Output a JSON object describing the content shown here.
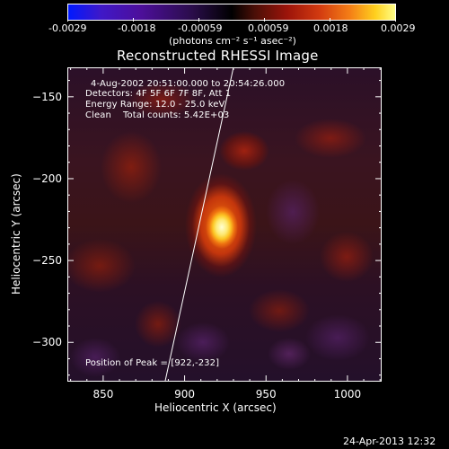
{
  "colorbar": {
    "tick_labels": [
      "-0.0029",
      "-0.0018",
      "-0.00059",
      "0.00059",
      "0.0018",
      "0.0029"
    ],
    "unit_label": "(photons cm⁻² s⁻¹ asec⁻²)",
    "range": [
      -0.0029,
      0.0029
    ]
  },
  "chart_data": {
    "type": "heatmap",
    "title": "Reconstructed RHESSI Image",
    "xlabel": "Heliocentric X (arcsec)",
    "ylabel": "Heliocentric Y (arcsec)",
    "xlim": [
      828,
      1021
    ],
    "ylim": [
      -324,
      -132
    ],
    "x_ticks": [
      850,
      900,
      950,
      1000
    ],
    "y_ticks": [
      -150,
      -200,
      -250,
      -300
    ],
    "x_tick_labels": [
      "850",
      "900",
      "950",
      "1000"
    ],
    "y_tick_labels": [
      "−150",
      "−200",
      "−250",
      "−300"
    ],
    "peak": [
      922,
      -232
    ],
    "limb_line": {
      "x": [
        888,
        930
      ],
      "y": [
        -324,
        -132
      ]
    },
    "annotations": [
      "4-Aug-2002 20:51:00.000 to 20:54:26.000",
      "Detectors: 4F 5F 6F 7F 8F, Att 1",
      "Energy Range: 12.0 - 25.0 keV",
      "Clean    Total counts: 5.42E+03",
      "Position of Peak = [922,-232]"
    ]
  },
  "footer": {
    "timestamp": "24-Apr-2013 12:32"
  },
  "colors": {
    "background": "#000000",
    "text": "#ffffff"
  }
}
